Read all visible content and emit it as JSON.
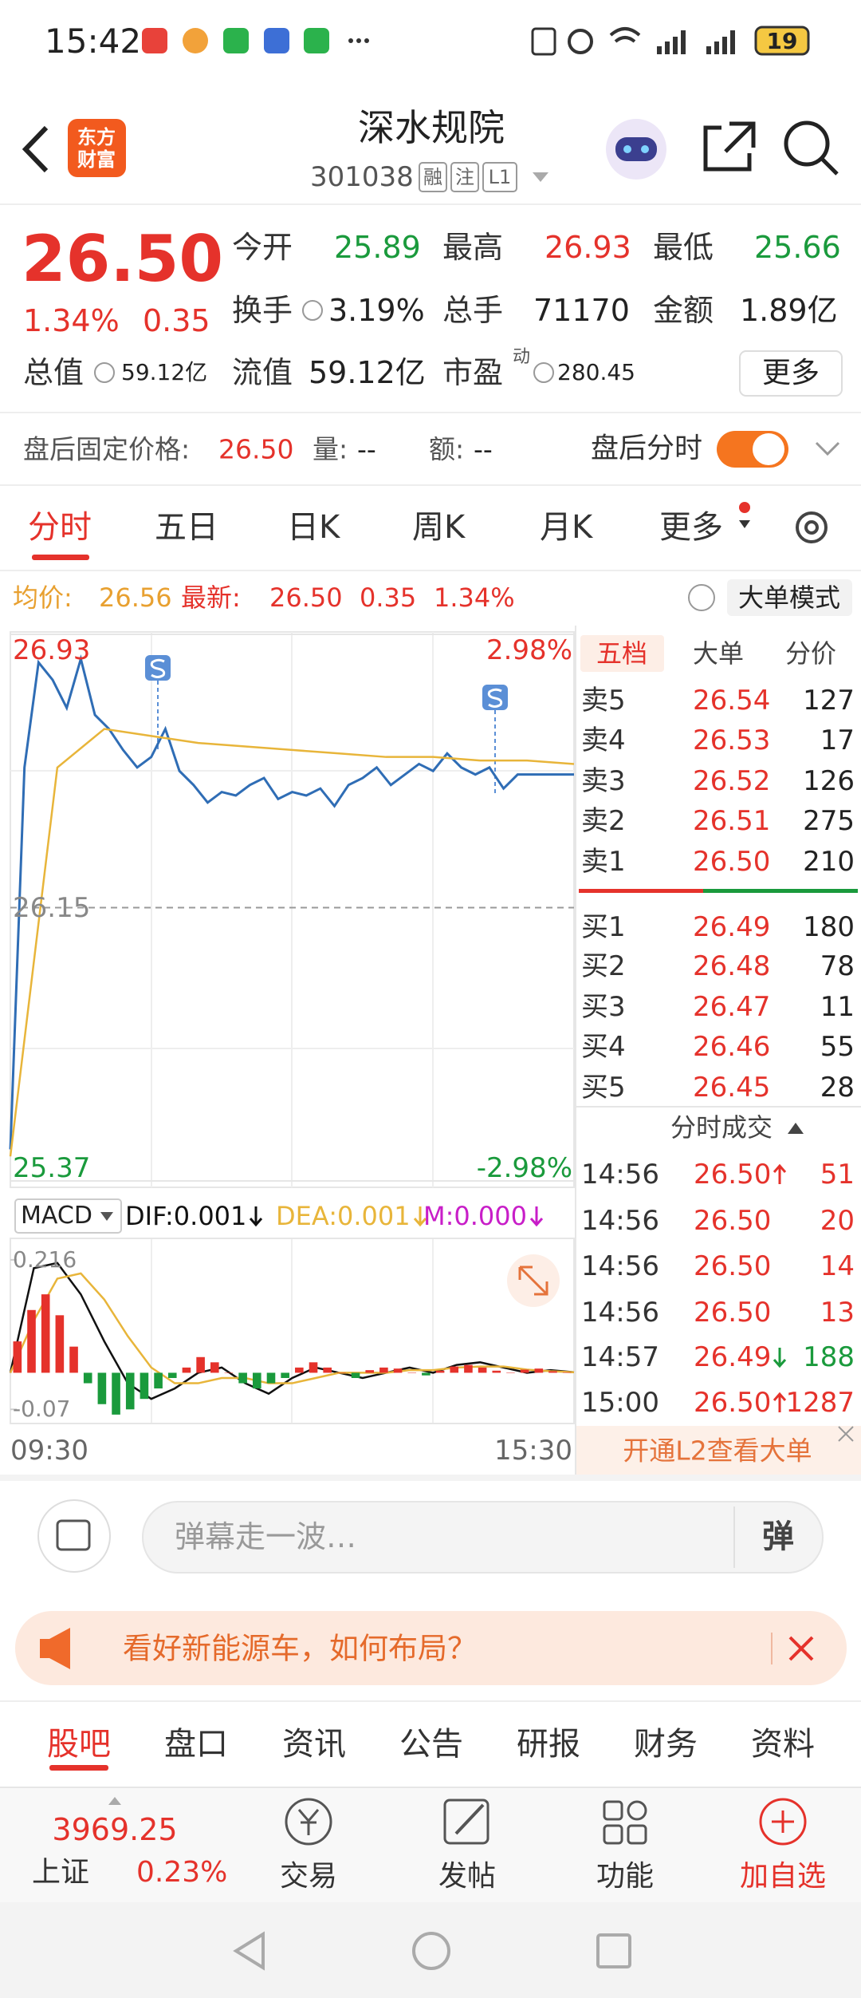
{
  "status_bar": {
    "time": "15:42",
    "battery": "19"
  },
  "header": {
    "logo": [
      "东方",
      "财富"
    ],
    "title": "深水规院",
    "code": "301038",
    "tags": [
      "融",
      "注",
      "L1"
    ]
  },
  "quote": {
    "price": "26.50",
    "change_pct": "1.34%",
    "change": "0.35",
    "stats": [
      {
        "label": "今开",
        "value": "25.89",
        "tone": "down"
      },
      {
        "label": "最高",
        "value": "26.93",
        "tone": "up"
      },
      {
        "label": "最低",
        "value": "25.66",
        "tone": "down"
      },
      {
        "label": "换手",
        "value": "3.19%",
        "info": true
      },
      {
        "label": "总手",
        "value": "71170"
      },
      {
        "label": "金额",
        "value": "1.89亿"
      },
      {
        "label": "总值",
        "value": "59.12亿",
        "info": true,
        "small": true
      },
      {
        "label": "流值",
        "value": "59.12亿"
      },
      {
        "label": "市盈",
        "sup": "动",
        "value": "280.45",
        "info": true,
        "small": true
      }
    ],
    "more": "更多"
  },
  "after_hours": {
    "fixed_price_label": "盘后固定价格:",
    "fixed_price": "26.50",
    "volume_label": "量:",
    "volume": "--",
    "amount_label": "额:",
    "amount": "--",
    "toggle_label": "盘后分时",
    "toggle_on": true
  },
  "tabs": {
    "items": [
      "分时",
      "五日",
      "日K",
      "周K",
      "月K",
      "更多"
    ],
    "active": 0
  },
  "info_bar": {
    "avg_label": "均价:",
    "avg": "26.56",
    "last_label": "最新:",
    "last": "26.50",
    "change": "0.35",
    "change_pct": "1.34%",
    "mode_button": "大单模式"
  },
  "chart_data": [
    {
      "type": "line",
      "ylim": [
        25.37,
        26.93
      ],
      "yticks": [
        26.93,
        26.15,
        25.37
      ],
      "y2lim": [
        -2.98,
        2.98
      ],
      "y2ticks": [
        {
          "value": 2.98,
          "label": "2.98%"
        },
        {
          "value": -2.98,
          "label": "-2.98%"
        }
      ],
      "series": [
        {
          "color": "#2f6db5",
          "values": [
            25.46,
            26.55,
            26.85,
            26.8,
            26.72,
            26.86,
            26.7,
            26.66,
            26.6,
            26.55,
            26.58,
            26.66,
            26.54,
            26.5,
            26.45,
            26.48,
            26.47,
            26.5,
            26.52,
            26.46,
            26.48,
            26.47,
            26.49,
            26.44,
            26.5,
            26.52,
            26.55,
            26.5,
            26.53,
            26.56,
            26.54,
            26.59,
            26.55,
            26.53,
            26.55,
            26.49,
            26.53,
            26.53,
            26.53,
            26.53,
            26.53
          ]
        },
        {
          "color": "#e8b53a",
          "values": [
            25.44,
            26.55,
            26.66,
            26.64,
            26.62,
            26.61,
            26.6,
            26.59,
            26.58,
            26.58,
            26.57,
            26.57,
            26.56
          ]
        }
      ]
    },
    {
      "type": "macd",
      "indicator": "MACD",
      "ylim": [
        -0.097,
        0.257
      ],
      "yticks": [
        0.216,
        -0.07
      ],
      "x_labels": [
        "09:30",
        "15:30"
      ],
      "series": [
        {
          "legend_text": "DIF:0.001",
          "dir": "down",
          "color": "#111111",
          "values": [
            0,
            0.2,
            0.21,
            0.15,
            0.06,
            -0.02,
            -0.05,
            -0.03,
            0,
            0.01,
            -0.02,
            -0.04,
            -0.01,
            0.01,
            0,
            -0.01,
            0,
            0.01,
            0,
            0.015,
            0.02,
            0.01,
            0,
            0.005,
            0.001
          ]
        },
        {
          "legend_text": "DEA:0.001",
          "dir": "down",
          "color": "#e8b53a",
          "values": [
            0,
            0.1,
            0.18,
            0.19,
            0.14,
            0.07,
            0.01,
            -0.02,
            -0.02,
            -0.01,
            -0.01,
            -0.02,
            -0.02,
            -0.01,
            0,
            0,
            0,
            0.005,
            0.005,
            0.01,
            0.012,
            0.012,
            0.006,
            0.003,
            0.001
          ]
        },
        {
          "legend_text": "M:0.000",
          "dir": "down",
          "type": "bar",
          "color": "#e5322b",
          "negative_color": "#1a9a3c",
          "legend_color": "#c81ec8",
          "values": [
            0.06,
            0.12,
            0.15,
            0.11,
            0.05,
            -0.02,
            -0.06,
            -0.08,
            -0.07,
            -0.05,
            -0.03,
            -0.01,
            0.01,
            0.03,
            0.02,
            0,
            -0.02,
            -0.03,
            -0.02,
            -0.01,
            0.01,
            0.02,
            0.01,
            0,
            -0.01,
            0.005,
            0.01,
            0.008,
            0,
            -0.005,
            0.004,
            0.012,
            0.015,
            0.01,
            0.004,
            0,
            0.006,
            0.008,
            0.003,
            0.001
          ]
        }
      ]
    }
  ],
  "order_book": {
    "tabs": [
      "五档",
      "大单",
      "分价"
    ],
    "active": 0,
    "asks": [
      {
        "label": "卖5",
        "price": "26.54",
        "volume": 127
      },
      {
        "label": "卖4",
        "price": "26.53",
        "volume": 17
      },
      {
        "label": "卖3",
        "price": "26.52",
        "volume": 126
      },
      {
        "label": "卖2",
        "price": "26.51",
        "volume": 275
      },
      {
        "label": "卖1",
        "price": "26.50",
        "volume": 210
      }
    ],
    "bids": [
      {
        "label": "买1",
        "price": "26.49",
        "volume": 180
      },
      {
        "label": "买2",
        "price": "26.48",
        "volume": 78
      },
      {
        "label": "买3",
        "price": "26.47",
        "volume": 11
      },
      {
        "label": "买4",
        "price": "26.46",
        "volume": 55
      },
      {
        "label": "买5",
        "price": "26.45",
        "volume": 28
      }
    ]
  },
  "trades": {
    "title": "分时成交",
    "rows": [
      {
        "time": "14:56",
        "price": "26.50",
        "dir": "up",
        "side": "buy",
        "volume": 51
      },
      {
        "time": "14:56",
        "price": "26.50",
        "side": "buy",
        "volume": 20
      },
      {
        "time": "14:56",
        "price": "26.50",
        "side": "buy",
        "volume": 14
      },
      {
        "time": "14:56",
        "price": "26.50",
        "side": "buy",
        "volume": 13
      },
      {
        "time": "14:57",
        "price": "26.49",
        "dir": "down",
        "side": "sell",
        "volume": 188
      },
      {
        "time": "15:00",
        "price": "26.50",
        "dir": "up",
        "side": "buy",
        "volume": 1287
      }
    ]
  },
  "l2_banner": "开通L2查看大单",
  "comment": {
    "placeholder": "弹幕走一波…",
    "button": "弹"
  },
  "ad": {
    "text": "看好新能源车，如何布局？"
  },
  "section_tabs": {
    "items": [
      "股吧",
      "盘口",
      "资讯",
      "公告",
      "研报",
      "财务",
      "资料"
    ],
    "active": 0
  },
  "bottom_bar": {
    "index_value": "3969.25",
    "index_name": "上证",
    "index_change": "0.23%",
    "actions": [
      "交易",
      "发帖",
      "功能",
      "加自选"
    ]
  }
}
